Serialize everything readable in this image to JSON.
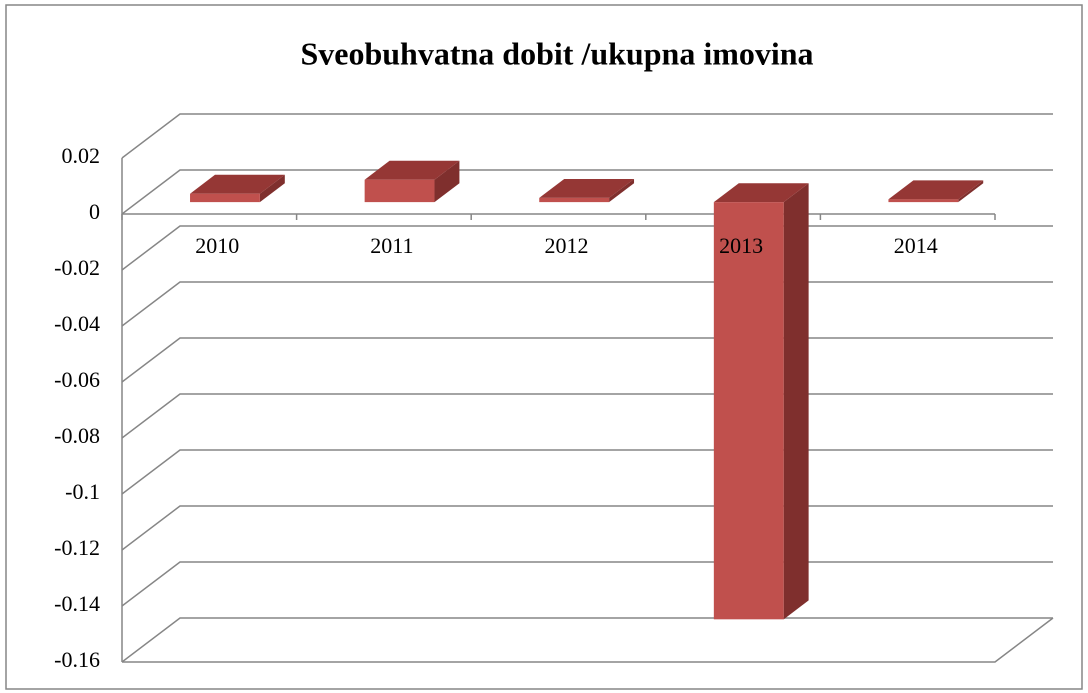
{
  "chart_data": {
    "type": "bar3d",
    "title": "Sveobuhvatna dobit /ukupna imovina",
    "categories": [
      "2010",
      "2011",
      "2012",
      "2013",
      "2014"
    ],
    "values": [
      0.003,
      0.008,
      0.0015,
      -0.149,
      0.001
    ],
    "color": "#c0504d",
    "ylim": [
      -0.16,
      0.02
    ],
    "yticks": [
      0.02,
      0,
      -0.02,
      -0.04,
      -0.06,
      -0.08,
      -0.1,
      -0.12,
      -0.14,
      -0.16
    ],
    "grid": true
  }
}
